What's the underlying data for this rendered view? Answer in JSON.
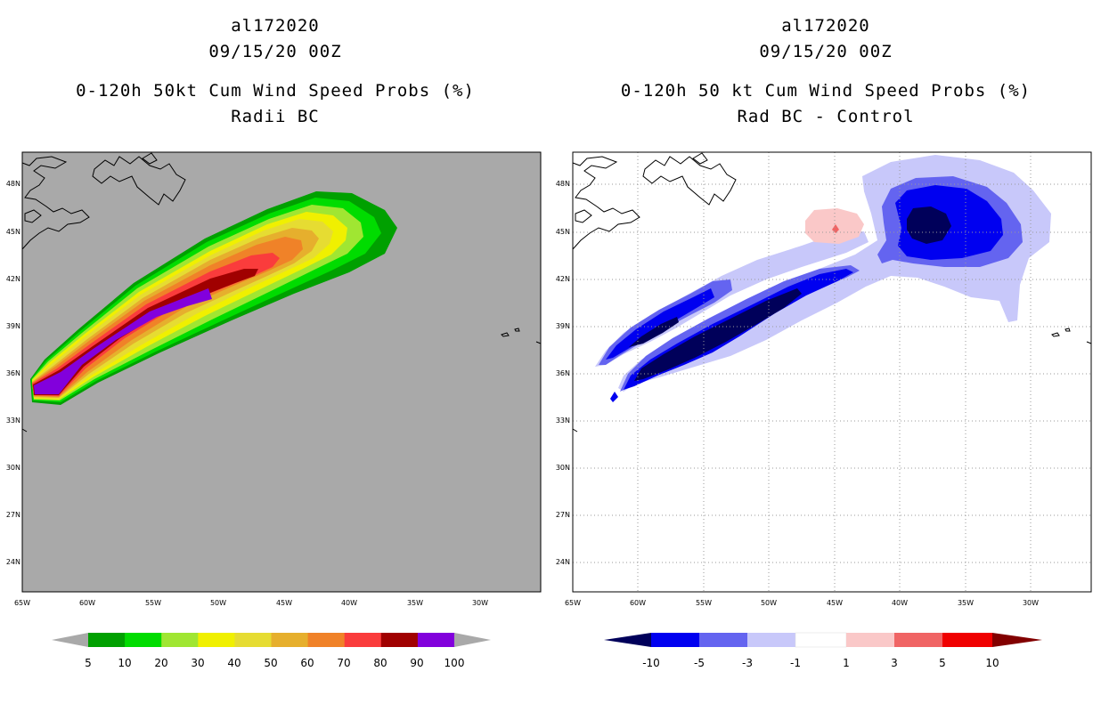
{
  "left_panel": {
    "storm_id": "al172020",
    "datetime": "09/15/20 00Z",
    "title_line1": "0-120h 50kt Cum Wind Speed Probs (%)",
    "title_line2": "Radii BC",
    "colorbar_labels": [
      "5",
      "10",
      "20",
      "30",
      "40",
      "50",
      "60",
      "70",
      "80",
      "90",
      "100"
    ],
    "colorbar_colors": [
      "#00a000",
      "#00dc00",
      "#a0e632",
      "#f0f000",
      "#e6dc32",
      "#e6af2d",
      "#f08228",
      "#fa3c3c",
      "#a00000",
      "#8200dc"
    ],
    "background_color": "#a9a9a9"
  },
  "right_panel": {
    "storm_id": "al172020",
    "datetime": "09/15/20 00Z",
    "title_line1": "0-120h 50 kt Cum Wind Speed Probs (%)",
    "title_line2": "Rad BC - Control",
    "colorbar_labels": [
      "-10",
      "-5",
      "-3",
      "-1",
      "1",
      "3",
      "5",
      "10"
    ],
    "colorbar_colors": [
      "#00005a",
      "#0000f0",
      "#6464f0",
      "#c8c8fa",
      "#ffffff",
      "#fac8c8",
      "#f06464",
      "#f00000",
      "#820000"
    ]
  },
  "axes": {
    "lon_labels": [
      "65W",
      "60W",
      "55W",
      "50W",
      "45W",
      "40W",
      "35W",
      "30W"
    ],
    "lat_labels": [
      "48N",
      "45N",
      "42N",
      "39N",
      "36N",
      "33N",
      "30N",
      "27N",
      "24N"
    ]
  }
}
